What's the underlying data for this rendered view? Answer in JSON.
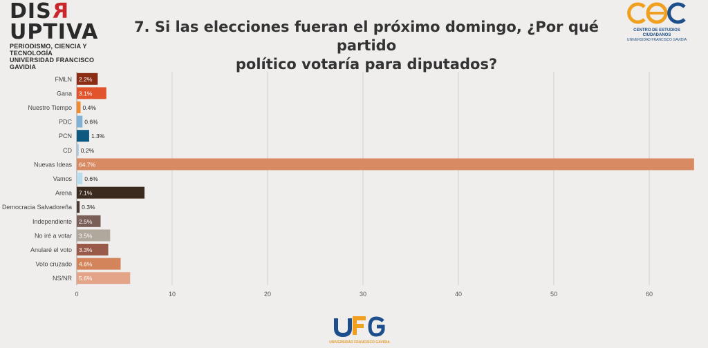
{
  "header": {
    "brand_left_prefix": "DIS",
    "brand_left_accent": "R",
    "brand_left_suffix": "UPTIVA",
    "brand_left_tagline": "PERIODISMO, CIENCIA Y TECNOLOGÍA",
    "brand_left_university": "UNIVERSIDAD FRANCISCO GAVIDIA",
    "brand_right_caption": "CENTRO DE ESTUDIOS CIUDADANOS",
    "brand_right_university": "UNIVERSIDAD FRANCISCO GAVIDIA",
    "brand_bottom_university": "UNIVERSIDAD FRANCISCO GAVIDIA"
  },
  "chart_data": {
    "type": "bar",
    "orientation": "horizontal",
    "title_line1": "7. Si las elecciones fueran el próximo domingo, ¿Por qué partido",
    "title_line2": "político votaría para diputados?",
    "categories": [
      "FMLN",
      "Gana",
      "Nuestro Tiempo",
      "PDC",
      "PCN",
      "CD",
      "Nuevas Ideas",
      "Vamos",
      "Arena",
      "Democracia Salvadoreña",
      "Independiente",
      "No iré a votar",
      "Anularé el voto",
      "Voto cruzado",
      "NS/NR"
    ],
    "values": [
      2.2,
      3.1,
      0.4,
      0.6,
      1.3,
      0.2,
      64.7,
      0.6,
      7.1,
      0.3,
      2.5,
      3.5,
      3.3,
      4.6,
      5.6
    ],
    "value_labels": [
      "2.2%",
      "3.1%",
      "0.4%",
      "0.6%",
      "1.3%",
      "0.2%",
      "64.7%",
      "0.6%",
      "7.1%",
      "0.3%",
      "2.5%",
      "3.5%",
      "3.3%",
      "4.6%",
      "5.6%"
    ],
    "colors": [
      "#8b2c14",
      "#e0532b",
      "#f08a2e",
      "#7fb1d6",
      "#0e5a7e",
      "#a9c6e0",
      "#d88a62",
      "#b8dceb",
      "#3b2a1e",
      "#4a3a32",
      "#7a5f58",
      "#b0a89c",
      "#9a5a4a",
      "#d4845a",
      "#e4a488"
    ],
    "xlim": [
      0,
      65
    ],
    "xticks": [
      "0",
      "10",
      "20",
      "30",
      "40",
      "50",
      "60"
    ],
    "grid": true,
    "legend": "none"
  }
}
